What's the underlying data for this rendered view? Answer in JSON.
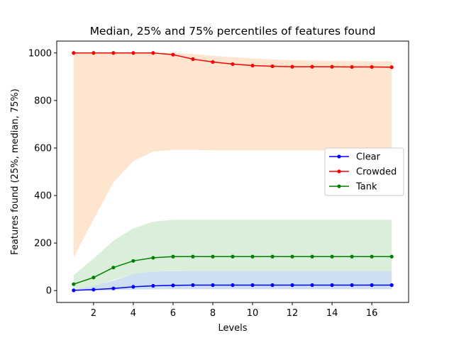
{
  "chart_data": {
    "type": "line",
    "title": "Median, 25% and 75% percentiles of features found",
    "xlabel": "Levels",
    "ylabel": "Features found (25%, median, 75%)",
    "xlim": [
      0.15,
      17.85
    ],
    "ylim": [
      -50,
      1050
    ],
    "xticks": [
      2,
      4,
      6,
      8,
      10,
      12,
      14,
      16
    ],
    "yticks": [
      0,
      200,
      400,
      600,
      800,
      1000
    ],
    "grid": false,
    "legend_position": "center-right",
    "x": [
      1,
      2,
      3,
      4,
      5,
      6,
      7,
      8,
      9,
      10,
      11,
      12,
      13,
      14,
      15,
      16,
      17
    ],
    "series": [
      {
        "name": "Clear",
        "color": "#0000ff",
        "band_color": "#c6d9f0",
        "median": [
          1,
          4,
          9,
          16,
          20,
          22,
          23,
          23,
          23,
          23,
          23,
          23,
          23,
          23,
          23,
          23,
          23
        ],
        "p25": [
          0,
          1,
          2,
          4,
          5,
          6,
          6,
          6,
          6,
          6,
          6,
          6,
          6,
          6,
          6,
          6,
          6
        ],
        "p75": [
          5,
          20,
          42,
          70,
          80,
          82,
          83,
          83,
          83,
          83,
          83,
          83,
          83,
          83,
          83,
          83,
          83
        ]
      },
      {
        "name": "Crowded",
        "color": "#ff0000",
        "band_color": "#fde0c8",
        "median": [
          1000,
          1000,
          1000,
          1000,
          1000,
          993,
          974,
          962,
          953,
          947,
          944,
          942,
          942,
          942,
          941,
          941,
          940
        ],
        "p25": [
          140,
          300,
          455,
          545,
          585,
          592,
          592,
          590,
          590,
          590,
          590,
          590,
          590,
          590,
          590,
          590,
          590
        ],
        "p75": [
          1000,
          1000,
          1000,
          1000,
          1000,
          1000,
          996,
          988,
          982,
          977,
          973,
          970,
          968,
          967,
          966,
          965,
          965
        ]
      },
      {
        "name": "Tank",
        "color": "#008000",
        "band_color": "#d4ecd4",
        "median": [
          27,
          55,
          97,
          125,
          138,
          143,
          143,
          143,
          143,
          143,
          143,
          143,
          143,
          143,
          143,
          143,
          143
        ],
        "p25": [
          5,
          18,
          45,
          70,
          80,
          83,
          83,
          83,
          83,
          83,
          83,
          83,
          83,
          83,
          83,
          83,
          83
        ],
        "p75": [
          65,
          135,
          210,
          262,
          290,
          298,
          298,
          298,
          298,
          298,
          298,
          298,
          298,
          298,
          298,
          298,
          298
        ]
      }
    ]
  }
}
